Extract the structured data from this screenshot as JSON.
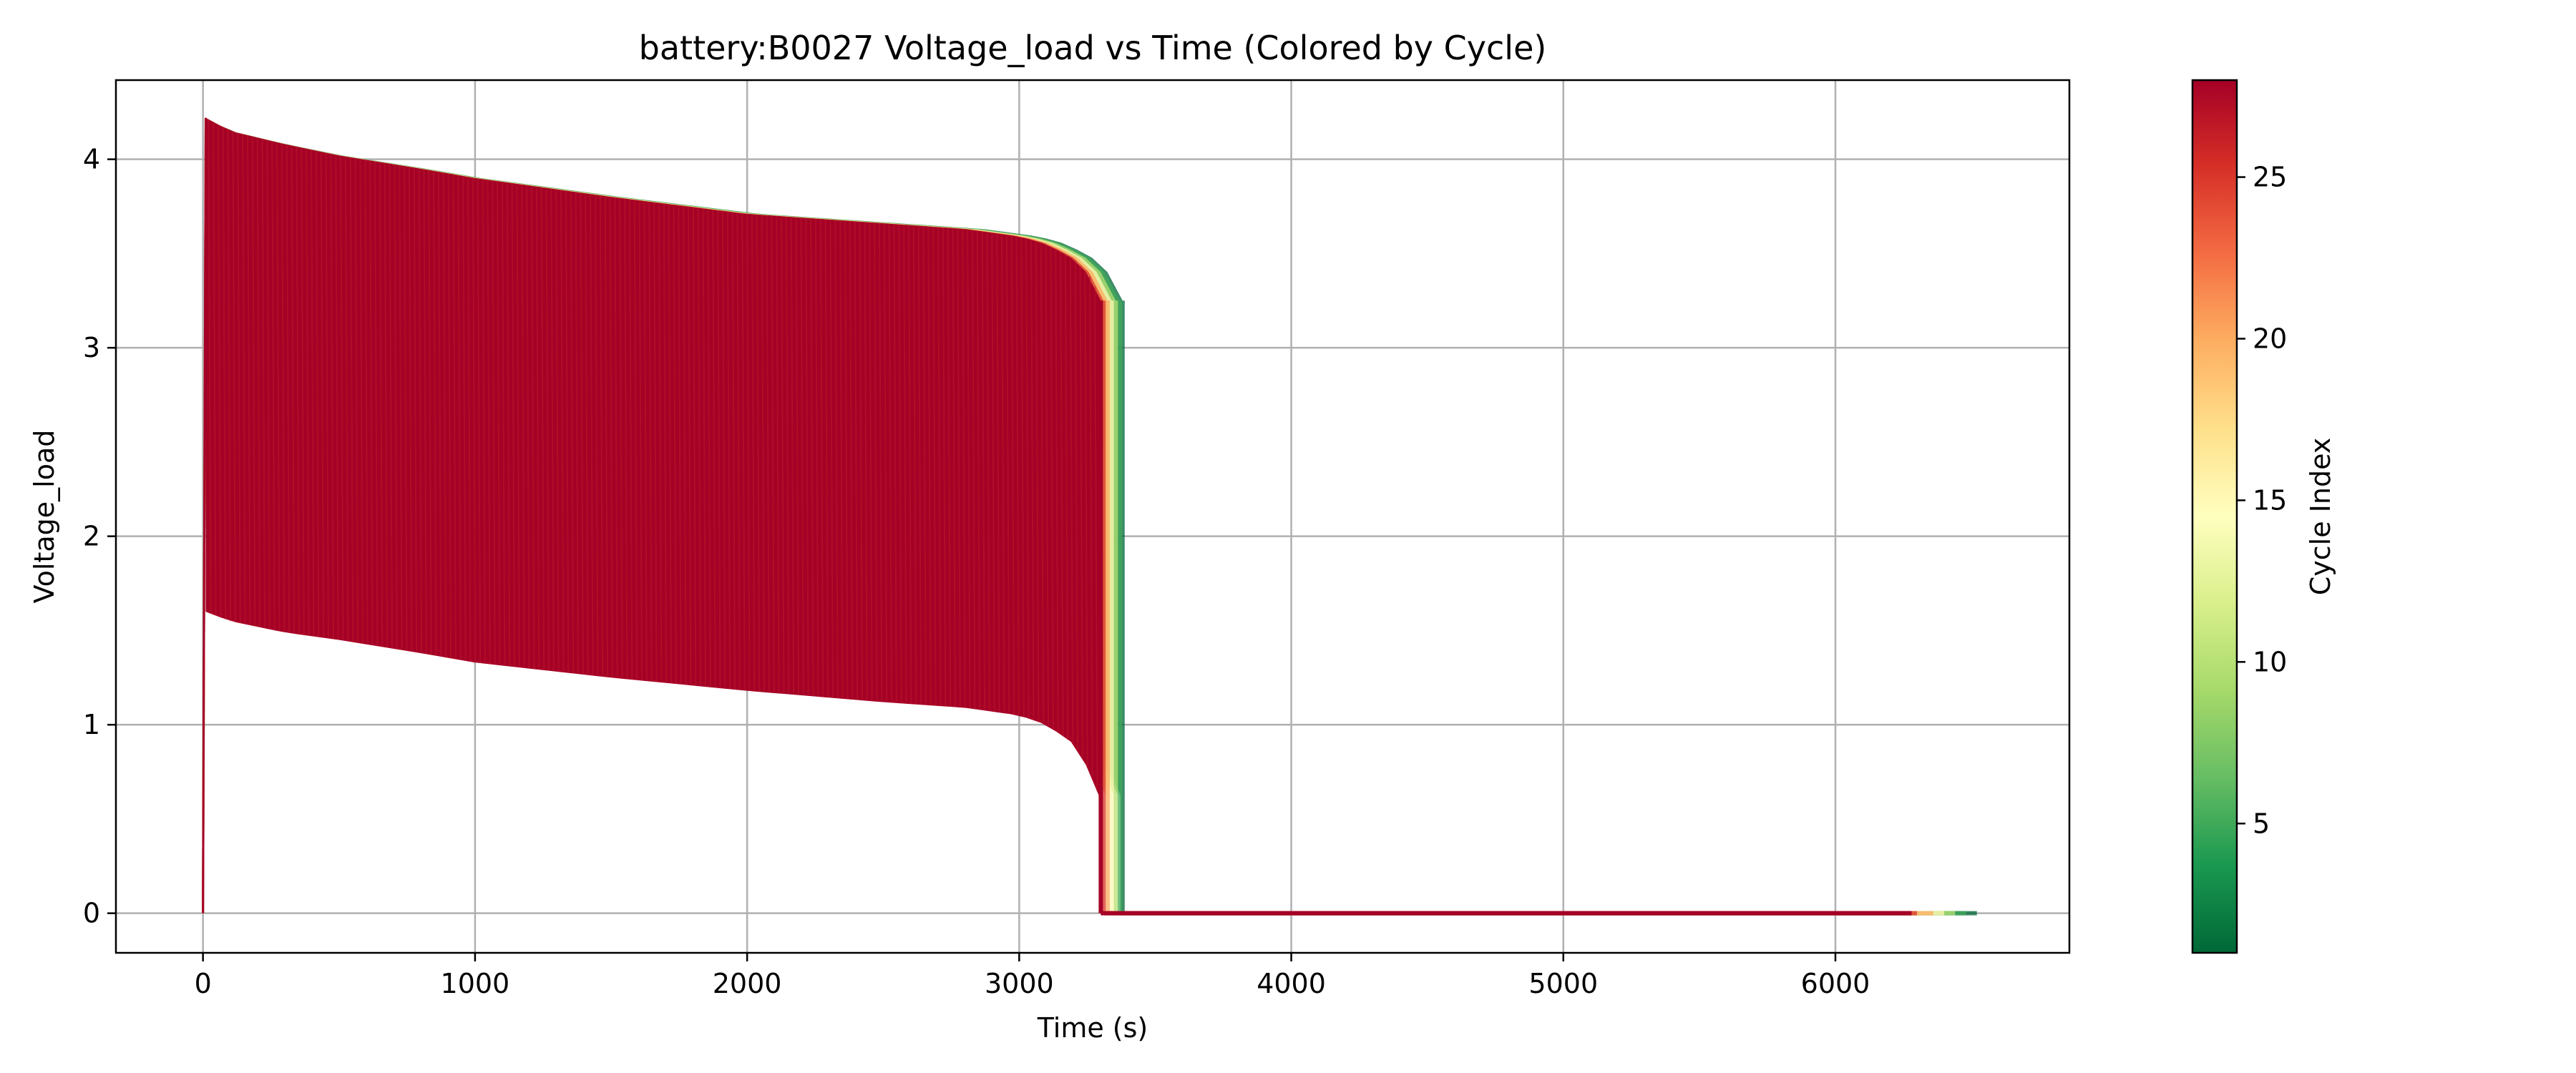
{
  "chart_data": {
    "type": "line",
    "title": "battery:B0027 Voltage_load vs Time (Colored by Cycle)",
    "xlabel": "Time (s)",
    "ylabel": "Voltage_load",
    "xlim": [
      -320,
      6860
    ],
    "ylim": [
      -0.21,
      4.42
    ],
    "xticks": [
      0,
      1000,
      2000,
      3000,
      4000,
      5000,
      6000
    ],
    "yticks": [
      0,
      1,
      2,
      3,
      4
    ],
    "grid": true,
    "colorbar": {
      "label": "Cycle Index",
      "range": [
        1,
        28
      ],
      "ticks": [
        5,
        10,
        15,
        20,
        25
      ],
      "colormap": [
        "#006837",
        "#1a9850",
        "#66bd63",
        "#a6d96a",
        "#d9ef8b",
        "#ffffbf",
        "#fee08b",
        "#fdae61",
        "#f46d43",
        "#d73027",
        "#a50026"
      ]
    },
    "series_description": "28 discharge cycles; each curve alternates rapidly between an upper (loaded-off) and lower (loaded) voltage envelope, then drops to 0 V at end of discharge and stays at 0 V to end of record.",
    "envelope_upper": {
      "x": [
        10,
        100,
        300,
        500,
        800,
        1000,
        1500,
        2000,
        2500,
        2800,
        3000,
        3100,
        3200,
        3260,
        3300
      ],
      "y": [
        4.22,
        4.15,
        4.08,
        4.02,
        3.95,
        3.9,
        3.8,
        3.71,
        3.66,
        3.63,
        3.59,
        3.55,
        3.47,
        3.38,
        3.25
      ]
    },
    "envelope_lower": {
      "x": [
        10,
        100,
        300,
        500,
        800,
        1000,
        1500,
        2000,
        2500,
        2800,
        3000,
        3100,
        3200,
        3260,
        3300
      ],
      "y": [
        1.6,
        1.55,
        1.49,
        1.45,
        1.38,
        1.33,
        1.25,
        1.18,
        1.12,
        1.09,
        1.05,
        1.0,
        0.9,
        0.75,
        0.6
      ]
    },
    "cycles": [
      {
        "cycle": 1,
        "cutoff_time": 3380,
        "end_time": 6520
      },
      {
        "cycle": 5,
        "cutoff_time": 3370,
        "end_time": 6480
      },
      {
        "cycle": 10,
        "cutoff_time": 3355,
        "end_time": 6440
      },
      {
        "cycle": 15,
        "cutoff_time": 3340,
        "end_time": 6400
      },
      {
        "cycle": 20,
        "cutoff_time": 3325,
        "end_time": 6360
      },
      {
        "cycle": 25,
        "cutoff_time": 3310,
        "end_time": 6300
      },
      {
        "cycle": 28,
        "cutoff_time": 3300,
        "end_time": 6280
      }
    ]
  }
}
